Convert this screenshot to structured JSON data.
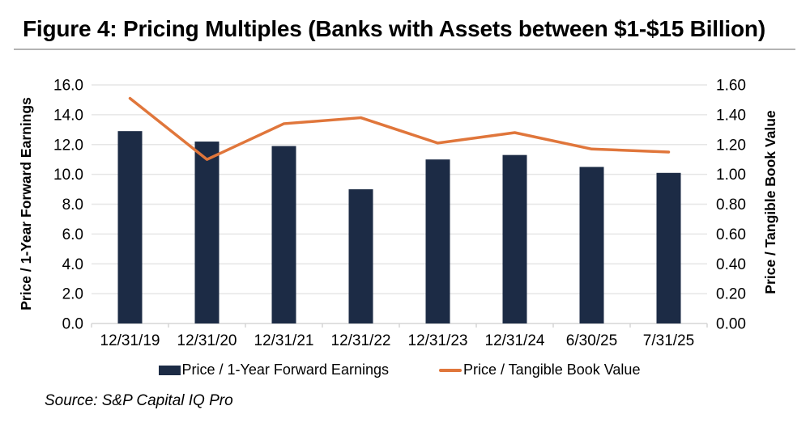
{
  "figure": {
    "title": "Figure 4: Pricing Multiples (Banks with Assets between $1-$15 Billion)",
    "source": "Source: S&P Capital IQ Pro"
  },
  "colors": {
    "bar": "#1C2B45",
    "line": "#E0763B",
    "grid": "#E6E6E6",
    "axis_line": "#D6D6D6",
    "text": "#000000",
    "title_rule": "#B3B3B3"
  },
  "chart_data": {
    "type": "bar",
    "subtype": "bar-with-line-overlay",
    "categories": [
      "12/31/19",
      "12/31/20",
      "12/31/21",
      "12/31/22",
      "12/31/23",
      "12/31/24",
      "6/30/25",
      "7/31/25"
    ],
    "series": [
      {
        "name": "Price / 1-Year Forward Earnings",
        "type": "bar",
        "axis": "left",
        "values": [
          12.9,
          12.2,
          11.9,
          9.0,
          11.0,
          11.3,
          10.5,
          10.1
        ]
      },
      {
        "name": "Price / Tangible Book Value",
        "type": "line",
        "axis": "right",
        "values": [
          1.51,
          1.1,
          1.34,
          1.38,
          1.21,
          1.28,
          1.17,
          1.15
        ]
      }
    ],
    "left_axis": {
      "label": "Price / 1-Year Forward Earnings",
      "min": 0,
      "max": 16,
      "step": 2,
      "ticks": [
        "0.0",
        "2.0",
        "4.0",
        "6.0",
        "8.0",
        "10.0",
        "12.0",
        "14.0",
        "16.0"
      ]
    },
    "right_axis": {
      "label": "Price / Tangible Book Value",
      "min": 0,
      "max": 1.6,
      "step": 0.2,
      "ticks": [
        "0.00",
        "0.20",
        "0.40",
        "0.60",
        "0.80",
        "1.00",
        "1.20",
        "1.40",
        "1.60"
      ]
    },
    "legend_position": "bottom",
    "grid": "horizontal-only"
  }
}
